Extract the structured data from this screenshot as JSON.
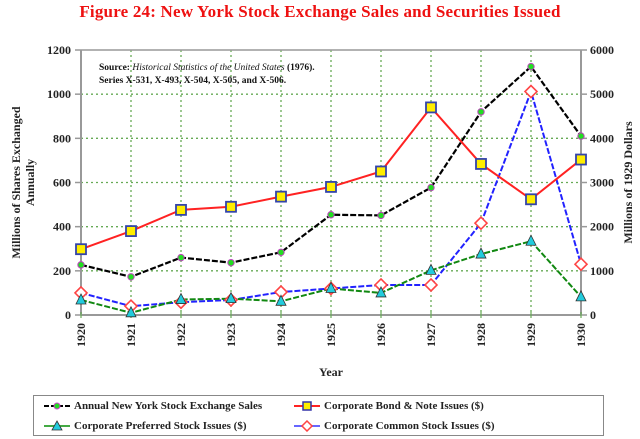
{
  "title": "Figure 24: New York Stock Exchange Sales and Securities Issued",
  "source_note": {
    "prefix": "Source:",
    "italic": "Historical Statistics of the United States",
    "suffix": "(1976).",
    "line2": "Series X-531, X-493, X-504, X-505, and X-506."
  },
  "colors": {
    "title": "#ee1111",
    "nyse": "#000000",
    "bond": "#ff2222",
    "preferred": "#118811",
    "common": "#2222ff",
    "grid": "#66aa55"
  },
  "chart_data": {
    "type": "line",
    "title": "Figure 24: New York Stock Exchange Sales and Securities Issued",
    "xlabel": "Year",
    "ylabel": "Millions of Shares Exchanged Annually",
    "y2label": "Millions of 1929 Dollars",
    "x": [
      1920,
      1921,
      1922,
      1923,
      1924,
      1925,
      1926,
      1927,
      1928,
      1929,
      1930
    ],
    "ylim": [
      0,
      1200
    ],
    "y2lim": [
      0,
      6000
    ],
    "yticks": [
      0,
      200,
      400,
      600,
      800,
      1000,
      1200
    ],
    "y2ticks": [
      0,
      1000,
      2000,
      3000,
      4000,
      5000,
      6000
    ],
    "grid": true,
    "legend_position": "bottom",
    "series": [
      {
        "name": "Annual New York Stock Exchange Sales",
        "axis": "left",
        "color": "#000000",
        "marker": "circle-green",
        "values": [
          227,
          173,
          260,
          237,
          284,
          454,
          451,
          577,
          920,
          1125,
          810
        ]
      },
      {
        "name": "Corporate Bond & Note Issues ($)",
        "axis": "right",
        "color": "#ff2222",
        "marker": "square-yellow",
        "values": [
          1490,
          1900,
          2380,
          2450,
          2680,
          2900,
          3250,
          4700,
          3420,
          2620,
          3520
        ]
      },
      {
        "name": "Corporate Preferred Stock Issues ($)",
        "axis": "right",
        "color": "#118811",
        "marker": "triangle-cyan",
        "values": [
          340,
          50,
          350,
          370,
          310,
          600,
          500,
          1010,
          1380,
          1670,
          410
        ]
      },
      {
        "name": "Corporate Common Stock Issues ($)",
        "axis": "right",
        "color": "#2222ff",
        "marker": "diamond-white",
        "values": [
          500,
          200,
          290,
          340,
          520,
          600,
          680,
          680,
          2080,
          5060,
          1150
        ]
      }
    ]
  },
  "legend": [
    {
      "label": "Annual New York Stock Exchange Sales"
    },
    {
      "label": "Corporate Bond & Note Issues ($)"
    },
    {
      "label": "Corporate Preferred Stock Issues ($)"
    },
    {
      "label": "Corporate Common Stock Issues ($)"
    }
  ]
}
